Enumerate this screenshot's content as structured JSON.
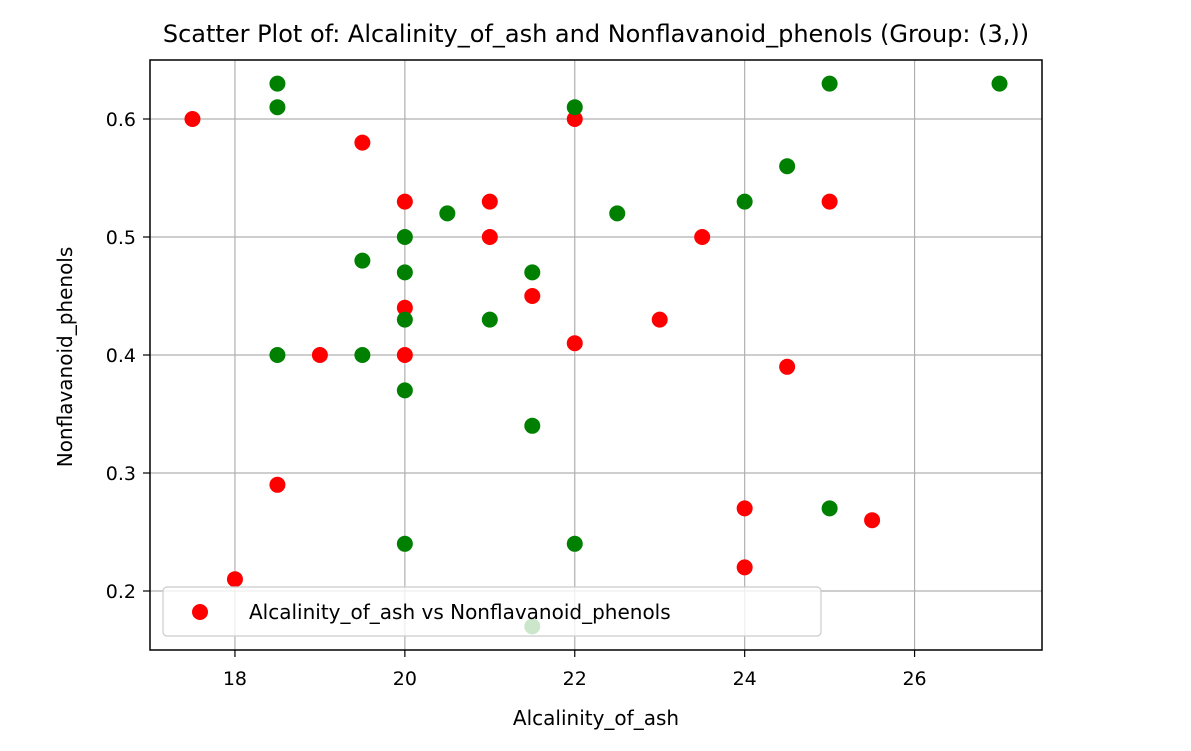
{
  "chart_data": {
    "type": "scatter",
    "title": "Scatter Plot of: Alcalinity_of_ash and Nonflavanoid_phenols (Group: (3,))",
    "xlabel": "Alcalinity_of_ash",
    "ylabel": "Nonflavanoid_phenols",
    "xlim": [
      17,
      27.5
    ],
    "ylim": [
      0.15,
      0.65
    ],
    "xticks": [
      18,
      20,
      22,
      24,
      26
    ],
    "yticks": [
      0.2,
      0.3,
      0.4,
      0.5,
      0.6
    ],
    "xtick_labels": [
      "18",
      "20",
      "22",
      "24",
      "26"
    ],
    "ytick_labels": [
      "0.2",
      "0.3",
      "0.4",
      "0.5",
      "0.6"
    ],
    "grid": true,
    "legend_position": "lower-left",
    "series": [
      {
        "name": "Alcalinity_of_ash vs Nonflavanoid_phenols",
        "color": "#ff0000",
        "points": [
          [
            17.5,
            0.6
          ],
          [
            19.5,
            0.58
          ],
          [
            22.0,
            0.6
          ],
          [
            20.0,
            0.53
          ],
          [
            21.0,
            0.53
          ],
          [
            21.0,
            0.5
          ],
          [
            23.5,
            0.5
          ],
          [
            25.0,
            0.53
          ],
          [
            20.0,
            0.44
          ],
          [
            21.5,
            0.45
          ],
          [
            19.0,
            0.4
          ],
          [
            20.0,
            0.4
          ],
          [
            23.0,
            0.43
          ],
          [
            22.0,
            0.41
          ],
          [
            24.5,
            0.39
          ],
          [
            18.5,
            0.29
          ],
          [
            24.0,
            0.27
          ],
          [
            25.5,
            0.26
          ],
          [
            18.0,
            0.21
          ],
          [
            24.0,
            0.22
          ]
        ]
      },
      {
        "name": "",
        "color": "#008000",
        "points": [
          [
            18.5,
            0.63
          ],
          [
            18.5,
            0.61
          ],
          [
            22.0,
            0.61
          ],
          [
            25.0,
            0.63
          ],
          [
            27.0,
            0.63
          ],
          [
            24.5,
            0.56
          ],
          [
            24.0,
            0.53
          ],
          [
            20.5,
            0.52
          ],
          [
            22.5,
            0.52
          ],
          [
            19.5,
            0.48
          ],
          [
            20.0,
            0.5
          ],
          [
            20.0,
            0.47
          ],
          [
            21.5,
            0.47
          ],
          [
            20.0,
            0.43
          ],
          [
            21.0,
            0.43
          ],
          [
            18.5,
            0.4
          ],
          [
            19.5,
            0.4
          ],
          [
            20.0,
            0.37
          ],
          [
            21.5,
            0.34
          ],
          [
            20.0,
            0.24
          ],
          [
            22.0,
            0.24
          ],
          [
            25.0,
            0.27
          ],
          [
            21.5,
            0.17
          ]
        ]
      }
    ],
    "legend": [
      {
        "label": "Alcalinity_of_ash vs Nonflavanoid_phenols",
        "color": "#ff0000"
      }
    ]
  }
}
